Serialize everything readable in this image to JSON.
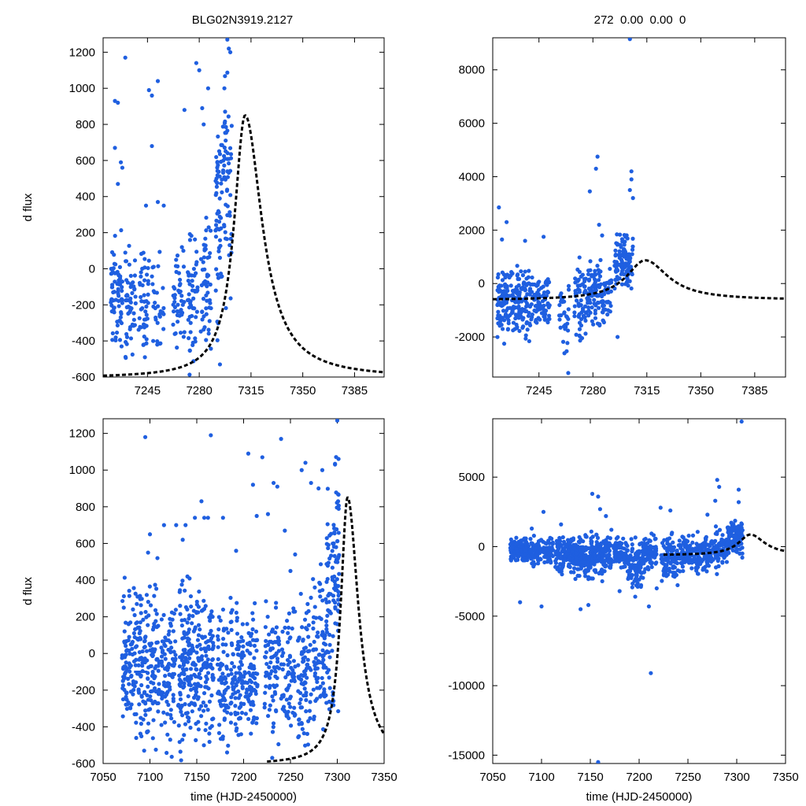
{
  "figure": {
    "title_left": "BLG02N3919.2127",
    "title_right": "272  0.00  0.00  0",
    "marker_color": "#1f5fe0",
    "curve_color": "#000000"
  },
  "chart_data": [
    {
      "id": "top-left",
      "type": "scatter",
      "xlim": [
        7215,
        7405
      ],
      "ylim": [
        -600,
        1280
      ],
      "xticks": [
        7245,
        7280,
        7315,
        7350,
        7385
      ],
      "yticks": [
        -600,
        -400,
        -200,
        0,
        200,
        400,
        600,
        800,
        1000,
        1200
      ],
      "xlabel": "",
      "ylabel": "d flux",
      "series": [
        {
          "name": "observations",
          "style": "points",
          "segments": [
            {
              "x0": 7220,
              "x1": 7228,
              "ymin": -580,
              "ymax": 250,
              "n": 70
            },
            {
              "x0": 7230,
              "x1": 7237,
              "ymin": -600,
              "ymax": 200,
              "n": 50
            },
            {
              "x0": 7239,
              "x1": 7246,
              "ymin": -590,
              "ymax": 150,
              "n": 45
            },
            {
              "x0": 7248,
              "x1": 7256,
              "ymin": -560,
              "ymax": 100,
              "n": 30
            },
            {
              "x0": 7262,
              "x1": 7270,
              "ymin": -560,
              "ymax": 250,
              "n": 45
            },
            {
              "x0": 7272,
              "x1": 7279,
              "ymin": -600,
              "ymax": 300,
              "n": 50
            },
            {
              "x0": 7281,
              "x1": 7288,
              "ymin": -580,
              "ymax": 450,
              "n": 50
            },
            {
              "x0": 7291,
              "x1": 7296,
              "ymin": -500,
              "ymax": 950,
              "n": 55
            },
            {
              "x0": 7296,
              "x1": 7302,
              "ymin": -300,
              "ymax": 1250,
              "n": 55
            }
          ],
          "outliers": [
            [
              7223,
              930
            ],
            [
              7225,
              920
            ],
            [
              7223,
              670
            ],
            [
              7225,
              470
            ],
            [
              7227,
              590
            ],
            [
              7228,
              560
            ],
            [
              7230,
              1170
            ],
            [
              7246,
              990
            ],
            [
              7248,
              960
            ],
            [
              7252,
              1040
            ],
            [
              7248,
              680
            ],
            [
              7244,
              350
            ],
            [
              7252,
              370
            ],
            [
              7256,
              350
            ],
            [
              7270,
              880
            ],
            [
              7278,
              1140
            ],
            [
              7280,
              1100
            ],
            [
              7282,
              890
            ],
            [
              7286,
              1000
            ],
            [
              7283,
              800
            ],
            [
              7294,
              -530
            ],
            [
              7299,
              1270
            ],
            [
              7301,
              1200
            ],
            [
              7300,
              1220
            ],
            [
              7297,
              1000
            ]
          ]
        },
        {
          "name": "model",
          "style": "dashed",
          "peak_x": 7311,
          "peak_y": 850,
          "baseline": -605,
          "rise_width": 9,
          "fall_width": 14
        }
      ]
    },
    {
      "id": "top-right",
      "type": "scatter",
      "xlim": [
        7215,
        7405
      ],
      "ylim": [
        -3500,
        9200
      ],
      "xticks": [
        7245,
        7280,
        7315,
        7350,
        7385
      ],
      "yticks": [
        -2000,
        0,
        2000,
        4000,
        6000,
        8000
      ],
      "xlabel": "",
      "ylabel": "",
      "series": [
        {
          "name": "observations",
          "style": "points",
          "segments": [
            {
              "x0": 7218,
              "x1": 7230,
              "ymin": -2600,
              "ymax": 800,
              "n": 110
            },
            {
              "x0": 7230,
              "x1": 7240,
              "ymin": -2500,
              "ymax": 900,
              "n": 90
            },
            {
              "x0": 7240,
              "x1": 7252,
              "ymin": -2000,
              "ymax": 600,
              "n": 80
            },
            {
              "x0": 7258,
              "x1": 7265,
              "ymin": -3000,
              "ymax": 300,
              "n": 30
            },
            {
              "x0": 7268,
              "x1": 7276,
              "ymin": -2800,
              "ymax": 900,
              "n": 60
            },
            {
              "x0": 7276,
              "x1": 7284,
              "ymin": -1800,
              "ymax": 1100,
              "n": 70
            },
            {
              "x0": 7284,
              "x1": 7292,
              "ymin": -2000,
              "ymax": 800,
              "n": 50
            },
            {
              "x0": 7294,
              "x1": 7306,
              "ymin": -500,
              "ymax": 2000,
              "n": 110
            }
          ],
          "outliers": [
            [
              7219,
              2850
            ],
            [
              7224,
              2300
            ],
            [
              7221,
              1650
            ],
            [
              7236,
              1600
            ],
            [
              7248,
              1750
            ],
            [
              7264,
              -3350
            ],
            [
              7278,
              3450
            ],
            [
              7283,
              4750
            ],
            [
              7282,
              4300
            ],
            [
              7284,
              2200
            ],
            [
              7286,
              1800
            ],
            [
              7296,
              -2000
            ],
            [
              7305,
              4200
            ],
            [
              7305,
              3900
            ],
            [
              7304,
              3500
            ],
            [
              7306,
              3200
            ],
            [
              7304,
              9150
            ]
          ]
        },
        {
          "name": "model",
          "style": "dashed",
          "peak_x": 7314,
          "peak_y": 870,
          "baseline": -620,
          "rise_width": 15,
          "fall_width": 18
        }
      ]
    },
    {
      "id": "bottom-left",
      "type": "scatter",
      "xlim": [
        7050,
        7350
      ],
      "ylim": [
        -600,
        1280
      ],
      "xticks": [
        7050,
        7100,
        7150,
        7200,
        7250,
        7300,
        7350
      ],
      "yticks": [
        -600,
        -400,
        -200,
        0,
        200,
        400,
        600,
        800,
        1000,
        1200
      ],
      "xlabel": "time (HJD-2450000)",
      "ylabel": "d flux",
      "series": [
        {
          "name": "observations",
          "style": "points",
          "segments": [
            {
              "x0": 7070,
              "x1": 7080,
              "ymin": -600,
              "ymax": 450,
              "n": 70
            },
            {
              "x0": 7080,
              "x1": 7095,
              "ymin": -600,
              "ymax": 400,
              "n": 90
            },
            {
              "x0": 7095,
              "x1": 7110,
              "ymin": -600,
              "ymax": 450,
              "n": 90
            },
            {
              "x0": 7112,
              "x1": 7128,
              "ymin": -600,
              "ymax": 350,
              "n": 90
            },
            {
              "x0": 7130,
              "x1": 7150,
              "ymin": -600,
              "ymax": 450,
              "n": 150
            },
            {
              "x0": 7150,
              "x1": 7168,
              "ymin": -600,
              "ymax": 400,
              "n": 110
            },
            {
              "x0": 7172,
              "x1": 7184,
              "ymin": -600,
              "ymax": 300,
              "n": 70
            },
            {
              "x0": 7186,
              "x1": 7200,
              "ymin": -600,
              "ymax": 350,
              "n": 90
            },
            {
              "x0": 7200,
              "x1": 7215,
              "ymin": -600,
              "ymax": 300,
              "n": 80
            },
            {
              "x0": 7222,
              "x1": 7238,
              "ymin": -600,
              "ymax": 350,
              "n": 80
            },
            {
              "x0": 7240,
              "x1": 7255,
              "ymin": -600,
              "ymax": 300,
              "n": 70
            },
            {
              "x0": 7258,
              "x1": 7272,
              "ymin": -600,
              "ymax": 350,
              "n": 80
            },
            {
              "x0": 7274,
              "x1": 7288,
              "ymin": -600,
              "ymax": 500,
              "n": 80
            },
            {
              "x0": 7288,
              "x1": 7296,
              "ymin": -550,
              "ymax": 950,
              "n": 55
            },
            {
              "x0": 7296,
              "x1": 7302,
              "ymin": -400,
              "ymax": 1250,
              "n": 55
            }
          ],
          "outliers": [
            [
              7095,
              1180
            ],
            [
              7098,
              550
            ],
            [
              7100,
              650
            ],
            [
              7108,
              520
            ],
            [
              7115,
              700
            ],
            [
              7128,
              700
            ],
            [
              7135,
              620
            ],
            [
              7138,
              700
            ],
            [
              7148,
              740
            ],
            [
              7155,
              830
            ],
            [
              7158,
              740
            ],
            [
              7162,
              740
            ],
            [
              7165,
              1190
            ],
            [
              7178,
              740
            ],
            [
              7192,
              560
            ],
            [
              7205,
              1090
            ],
            [
              7210,
              920
            ],
            [
              7214,
              750
            ],
            [
              7220,
              1070
            ],
            [
              7226,
              760
            ],
            [
              7232,
              930
            ],
            [
              7236,
              910
            ],
            [
              7240,
              1170
            ],
            [
              7244,
              670
            ],
            [
              7250,
              450
            ],
            [
              7255,
              540
            ],
            [
              7262,
              1000
            ],
            [
              7266,
              1040
            ],
            [
              7272,
              930
            ],
            [
              7276,
              360
            ],
            [
              7280,
              900
            ],
            [
              7284,
              1000
            ],
            [
              7300,
              1270
            ]
          ],
          "hline": {
            "x0": 7083,
            "x1": 7097,
            "y": -100
          }
        },
        {
          "name": "model",
          "style": "dashed",
          "peak_x": 7311,
          "peak_y": 850,
          "baseline": -605,
          "rise_width": 9,
          "fall_width": 14,
          "x_start": 7225
        }
      ]
    },
    {
      "id": "bottom-right",
      "type": "scatter",
      "xlim": [
        7050,
        7350
      ],
      "ylim": [
        -15600,
        9200
      ],
      "xticks": [
        7050,
        7100,
        7150,
        7200,
        7250,
        7300,
        7350
      ],
      "yticks": [
        -15000,
        -10000,
        -5000,
        0,
        5000
      ],
      "xlabel": "time (HJD-2450000)",
      "ylabel": "",
      "series": [
        {
          "name": "observations",
          "style": "points",
          "segments": [
            {
              "x0": 7068,
              "x1": 7082,
              "ymin": -1300,
              "ymax": 600,
              "n": 90
            },
            {
              "x0": 7082,
              "x1": 7096,
              "ymin": -1600,
              "ymax": 800,
              "n": 90
            },
            {
              "x0": 7096,
              "x1": 7112,
              "ymin": -1500,
              "ymax": 700,
              "n": 80
            },
            {
              "x0": 7114,
              "x1": 7132,
              "ymin": -2000,
              "ymax": 900,
              "n": 110
            },
            {
              "x0": 7132,
              "x1": 7152,
              "ymin": -2800,
              "ymax": 1000,
              "n": 150
            },
            {
              "x0": 7152,
              "x1": 7172,
              "ymin": -2400,
              "ymax": 1000,
              "n": 120
            },
            {
              "x0": 7174,
              "x1": 7188,
              "ymin": -1800,
              "ymax": 800,
              "n": 70
            },
            {
              "x0": 7188,
              "x1": 7204,
              "ymin": -3600,
              "ymax": 800,
              "n": 100
            },
            {
              "x0": 7204,
              "x1": 7218,
              "ymin": -2200,
              "ymax": 900,
              "n": 80
            },
            {
              "x0": 7222,
              "x1": 7240,
              "ymin": -2800,
              "ymax": 1000,
              "n": 100
            },
            {
              "x0": 7240,
              "x1": 7258,
              "ymin": -2000,
              "ymax": 900,
              "n": 90
            },
            {
              "x0": 7258,
              "x1": 7274,
              "ymin": -2400,
              "ymax": 1000,
              "n": 90
            },
            {
              "x0": 7274,
              "x1": 7290,
              "ymin": -2000,
              "ymax": 1400,
              "n": 80
            },
            {
              "x0": 7290,
              "x1": 7306,
              "ymin": -900,
              "ymax": 2000,
              "n": 120
            }
          ],
          "outliers": [
            [
              7078,
              -4000
            ],
            [
              7090,
              1300
            ],
            [
              7100,
              -4300
            ],
            [
              7102,
              2500
            ],
            [
              7120,
              1600
            ],
            [
              7140,
              -4500
            ],
            [
              7148,
              -4200
            ],
            [
              7152,
              3800
            ],
            [
              7158,
              3600
            ],
            [
              7160,
              2700
            ],
            [
              7166,
              2200
            ],
            [
              7180,
              -3200
            ],
            [
              7196,
              -3600
            ],
            [
              7210,
              -4300
            ],
            [
              7218,
              -3000
            ],
            [
              7222,
              2800
            ],
            [
              7232,
              2600
            ],
            [
              7270,
              2300
            ],
            [
              7280,
              4800
            ],
            [
              7282,
              4300
            ],
            [
              7278,
              3300
            ],
            [
              7302,
              4100
            ],
            [
              7302,
              3200
            ],
            [
              7212,
              -9100
            ],
            [
              7158,
              -15500
            ],
            [
              7305,
              9000
            ]
          ]
        },
        {
          "name": "model",
          "style": "dashed",
          "peak_x": 7314,
          "peak_y": 870,
          "baseline": -620,
          "rise_width": 15,
          "fall_width": 18,
          "x_start": 7225
        }
      ]
    }
  ]
}
